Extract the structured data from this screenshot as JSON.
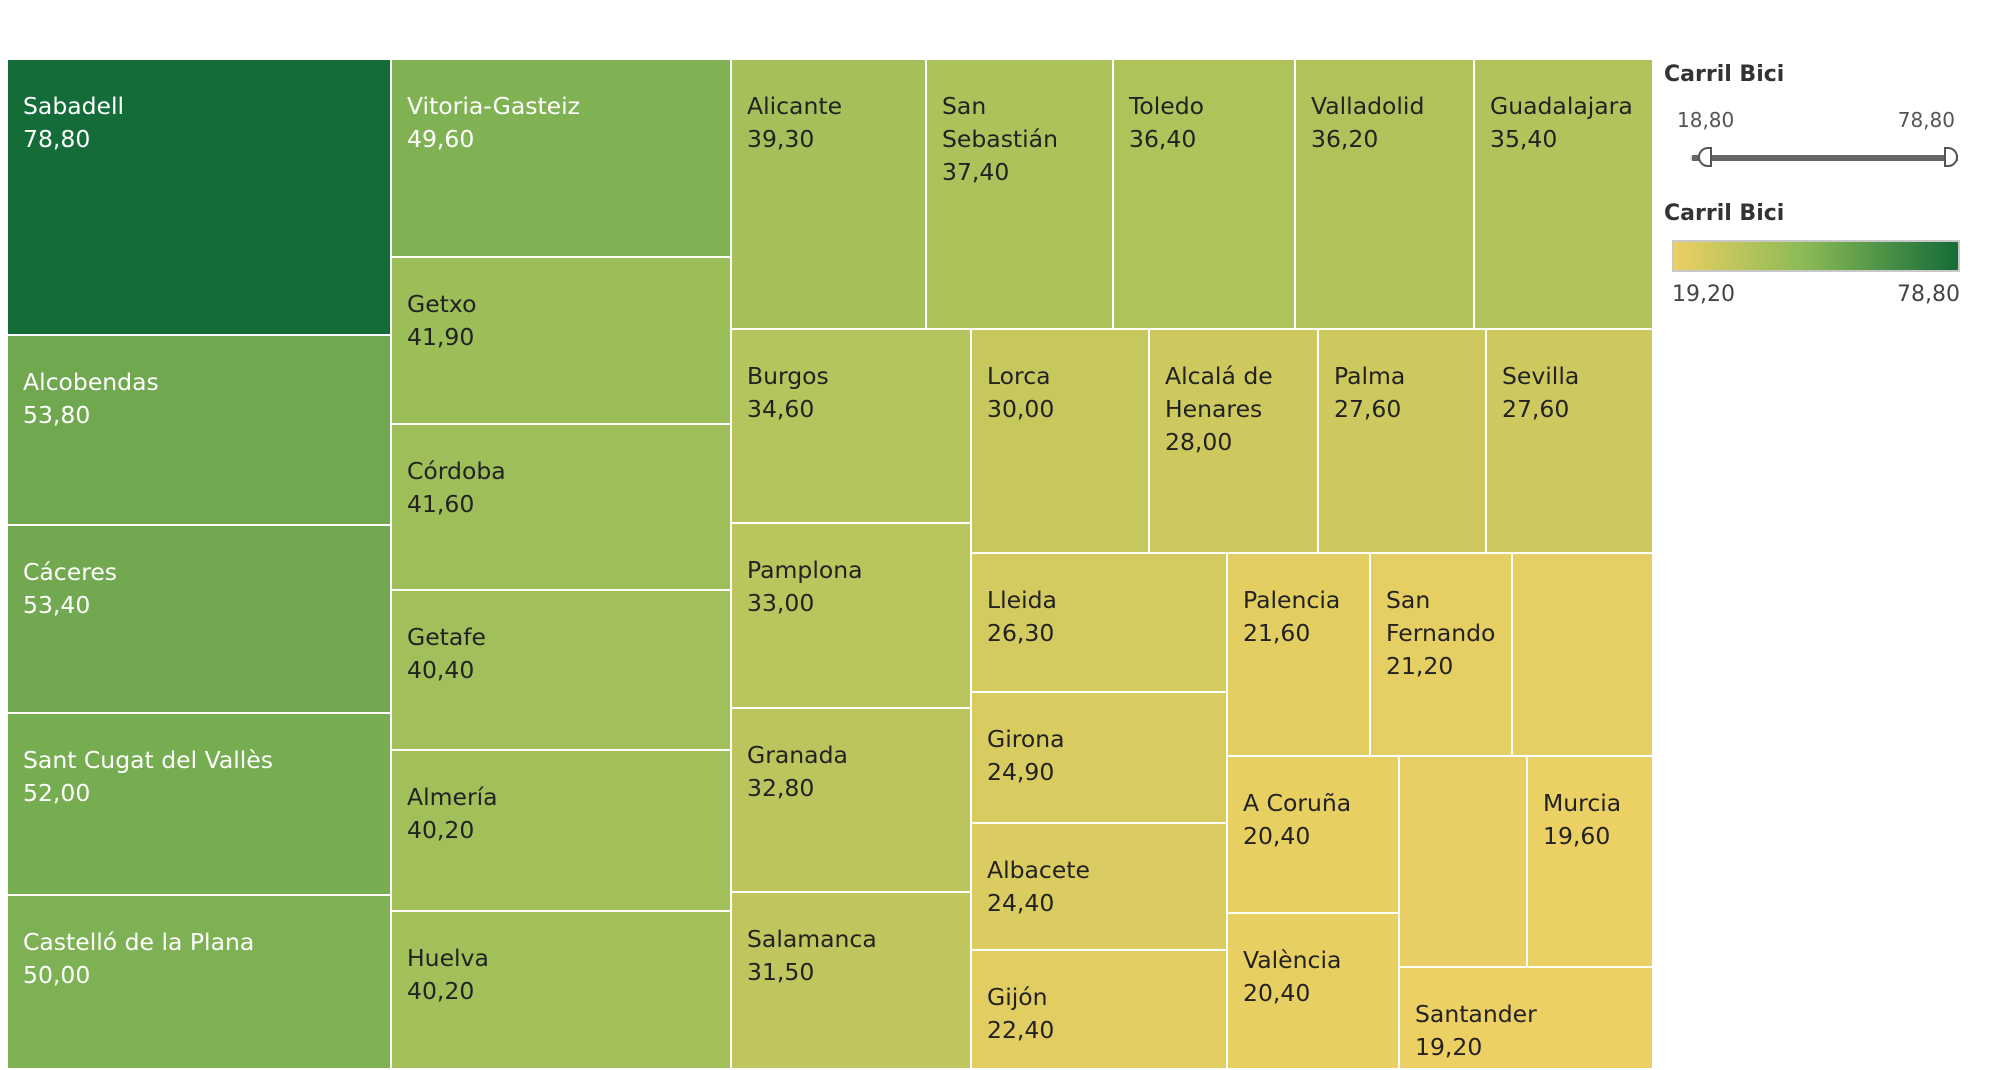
{
  "chart_data": {
    "type": "treemap",
    "colors": {
      "low": "#ecd063",
      "mid": "#8dbb57",
      "high": "#146c38"
    },
    "items": [
      {
        "name": "Sabadell",
        "value": 78.8,
        "label": "78,80"
      },
      {
        "name": "Alcobendas",
        "value": 53.8,
        "label": "53,80"
      },
      {
        "name": "Cáceres",
        "value": 53.4,
        "label": "53,40"
      },
      {
        "name": "Sant Cugat del Vallès",
        "value": 52.0,
        "label": "52,00"
      },
      {
        "name": "Castelló de la Plana",
        "value": 50.0,
        "label": "50,00"
      },
      {
        "name": "Vitoria-Gasteiz",
        "value": 49.6,
        "label": "49,60"
      },
      {
        "name": "Getxo",
        "value": 41.9,
        "label": "41,90"
      },
      {
        "name": "Córdoba",
        "value": 41.6,
        "label": "41,60"
      },
      {
        "name": "Getafe",
        "value": 40.4,
        "label": "40,40"
      },
      {
        "name": "Almería",
        "value": 40.2,
        "label": "40,20"
      },
      {
        "name": "Huelva",
        "value": 40.2,
        "label": "40,20"
      },
      {
        "name": "Alicante",
        "value": 39.3,
        "label": "39,30"
      },
      {
        "name": "San Sebastián",
        "value": 37.4,
        "label": "37,40"
      },
      {
        "name": "Toledo",
        "value": 36.4,
        "label": "36,40"
      },
      {
        "name": "Valladolid",
        "value": 36.2,
        "label": "36,20"
      },
      {
        "name": "Guadalajara",
        "value": 35.4,
        "label": "35,40"
      },
      {
        "name": "Burgos",
        "value": 34.6,
        "label": "34,60"
      },
      {
        "name": "Pamplona",
        "value": 33.0,
        "label": "33,00"
      },
      {
        "name": "Granada",
        "value": 32.8,
        "label": "32,80"
      },
      {
        "name": "Salamanca",
        "value": 31.5,
        "label": "31,50"
      },
      {
        "name": "Lorca",
        "value": 30.0,
        "label": "30,00"
      },
      {
        "name": "Alcalá de Henares",
        "value": 28.0,
        "label": "28,00"
      },
      {
        "name": "Palma",
        "value": 27.6,
        "label": "27,60"
      },
      {
        "name": "Sevilla",
        "value": 27.6,
        "label": "27,60"
      },
      {
        "name": "Lleida",
        "value": 26.3,
        "label": "26,30"
      },
      {
        "name": "Girona",
        "value": 24.9,
        "label": "24,90"
      },
      {
        "name": "Albacete",
        "value": 24.4,
        "label": "24,40"
      },
      {
        "name": "Gijón",
        "value": 22.4,
        "label": "22,40"
      },
      {
        "name": "Palencia",
        "value": 21.6,
        "label": "21,60"
      },
      {
        "name": "San Fernando",
        "value": 21.2,
        "label": "21,20"
      },
      {
        "name": "",
        "value": 21.0,
        "label": ""
      },
      {
        "name": "A Coruña",
        "value": 20.4,
        "label": "20,40"
      },
      {
        "name": "València",
        "value": 20.4,
        "label": "20,40"
      },
      {
        "name": "",
        "value": 20.0,
        "label": ""
      },
      {
        "name": "Murcia",
        "value": 19.6,
        "label": "19,60"
      },
      {
        "name": "Santander",
        "value": 19.2,
        "label": "19,20"
      }
    ]
  },
  "filter": {
    "title": "Carril Bici",
    "min_label": "18,80",
    "max_label": "78,80",
    "selected_min": 19.2,
    "selected_max": 78.8,
    "range_min": 18.8,
    "range_max": 78.8
  },
  "legend": {
    "title": "Carril Bici",
    "min_label": "19,20",
    "max_label": "78,80"
  }
}
